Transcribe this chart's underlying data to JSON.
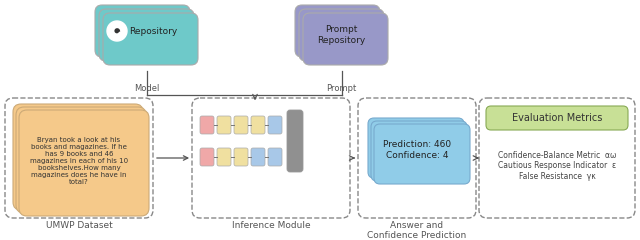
{
  "bg_color": "#ffffff",
  "repo_color": "#6ec9c9",
  "prompt_repo_color": "#9898c8",
  "dataset_card_color": "#f5c98a",
  "inference_pink": "#f0a8a8",
  "inference_yellow": "#f0e0a0",
  "inference_blue": "#a8c8e8",
  "inference_gray": "#909090",
  "answer_card_color": "#90cce8",
  "eval_box_color": "#c8e096",
  "dashed_edge": "#888888",
  "dataset_text": "Bryan took a look at his\nbooks and magazines. If he\nhas 9 books and 46\nmagazines in each of his 10\nbookshelves.How many\nmagazines does he have in\ntotal?",
  "dataset_label": "UMWP Dataset",
  "answer_text": "Prediction: 460\nConfidence: 4",
  "answer_label": "Answer and\nConfidence Prediction",
  "inference_label": "Inference Module",
  "repo_label": "Repository",
  "prompt_repo_label": "Prompt\nRepository",
  "model_label": "Model",
  "prompt_label": "Prompt",
  "eval_title": "Evaluation Metrics",
  "eval_metrics": "Confidence-Balance Metric  αω\nCautious Response Indicator  ε\nFalse Resistance  γκ"
}
